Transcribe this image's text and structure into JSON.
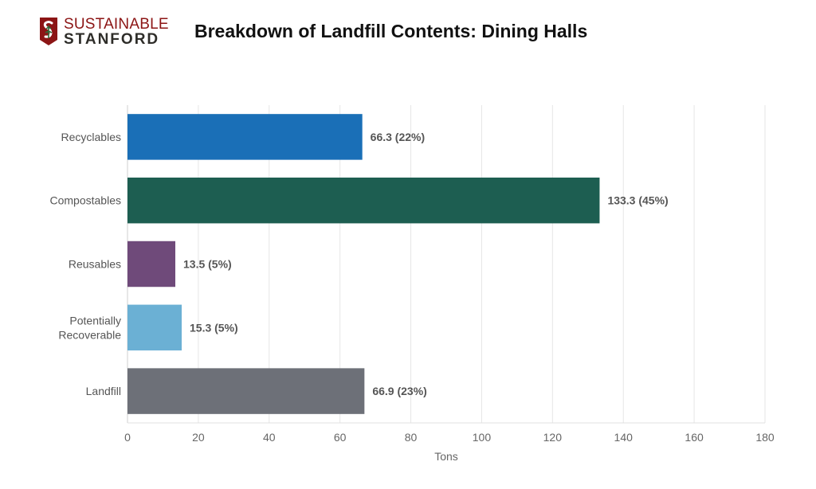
{
  "logo": {
    "line1": "SUSTAINABLE",
    "line2": "STANFORD",
    "line1_color": "#8c1515",
    "line2_color": "#2e2d29",
    "mark_color": "#8c1515",
    "mark_icon": "stanford-s-tree-icon"
  },
  "page_title": "Breakdown of Landfill Contents: Dining Halls",
  "chart_data": {
    "type": "bar",
    "orientation": "horizontal",
    "title": "Breakdown of Landfill Contents: Dining Halls",
    "xlabel": "Tons",
    "ylabel": "",
    "xlim": [
      0,
      180
    ],
    "xticks": [
      "0",
      "20",
      "40",
      "60",
      "80",
      "100",
      "120",
      "140",
      "160",
      "180"
    ],
    "grid": "vertical",
    "categories": [
      [
        "Recyclables"
      ],
      [
        "Compostables"
      ],
      [
        "Reusables"
      ],
      [
        "Potentially",
        "Recoverable"
      ],
      [
        "Landfill"
      ]
    ],
    "values": [
      66.3,
      133.3,
      13.5,
      15.3,
      66.9
    ],
    "data_labels": [
      "66.3 (22%)",
      "133.3 (45%)",
      "13.5 (5%)",
      "15.3 (5%)",
      "66.9 (23%)"
    ],
    "colors": [
      "#1a6fb7",
      "#1d5e51",
      "#6f4a7a",
      "#6bb0d4",
      "#6d7078"
    ]
  }
}
